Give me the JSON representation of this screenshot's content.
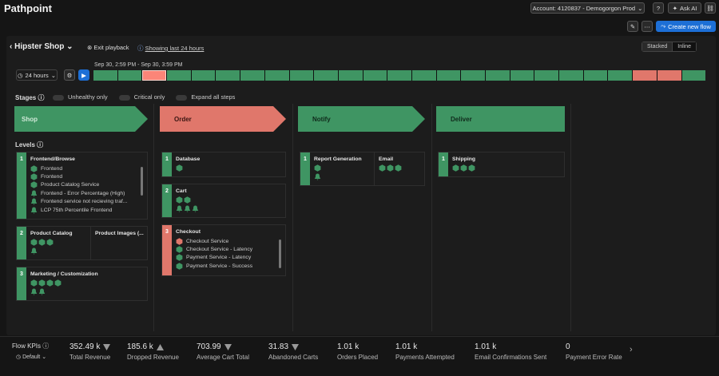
{
  "header": {
    "title": "Pathpoint",
    "account": "Account: 4120837 - Demogorgon Prod",
    "ask_ai": "Ask AI"
  },
  "toolbar": {
    "create_flow": "Create new flow"
  },
  "flow": {
    "name": "Hipster Shop",
    "exit": "Exit playback",
    "showing": "Showing last 24 hours",
    "views": [
      "Stacked",
      "Inline"
    ],
    "active_view": 1
  },
  "timeline": {
    "range": "24 hours",
    "time_label": "Sep 30, 2:59 PM - Sep 30, 3:59 PM",
    "selected": 2,
    "segments": [
      "#3f9563",
      "#3f9563",
      "#e0776b",
      "#3f9563",
      "#3f9563",
      "#3f9563",
      "#3f9563",
      "#3f9563",
      "#3f9563",
      "#3f9563",
      "#3f9563",
      "#3f9563",
      "#3f9563",
      "#3f9563",
      "#3f9563",
      "#3f9563",
      "#3f9563",
      "#3f9563",
      "#3f9563",
      "#3f9563",
      "#3f9563",
      "#3f9563",
      "#e0776b",
      "#e0776b",
      "#3f9563"
    ]
  },
  "stages_bar": {
    "label": "Stages",
    "toggles": [
      "Unhealthy only",
      "Critical only",
      "Expand all steps"
    ],
    "levels_label": "Levels"
  },
  "stages": [
    {
      "name": "Shop",
      "color": "#3f9563",
      "levels": [
        {
          "number": "1",
          "color": "#3f9563",
          "steps": [
            {
              "name": "Frontend/Browse",
              "scroll": true,
              "signals": [
                {
                  "type": "hex",
                  "color": "#3f9563",
                  "name": "Frontend"
                },
                {
                  "type": "hex",
                  "color": "#3f9563",
                  "name": "Frontend"
                },
                {
                  "type": "hex",
                  "color": "#3f9563",
                  "name": "Product Catalog Service"
                },
                {
                  "type": "bell",
                  "color": "#3f9563",
                  "name": "Frontend - Error Percentage (High)"
                },
                {
                  "type": "bell",
                  "color": "#3f9563",
                  "name": "Frontend service not recieving traf..."
                },
                {
                  "type": "bell",
                  "color": "#3f9563",
                  "name": "LCP 75th Percentile Frontend"
                }
              ]
            }
          ]
        },
        {
          "number": "2",
          "color": "#3f9563",
          "steps": [
            {
              "name": "Product Catalog",
              "signals": [
                {
                  "type": "hex",
                  "color": "#3f9563"
                },
                {
                  "type": "hex",
                  "color": "#3f9563"
                },
                {
                  "type": "hex",
                  "color": "#3f9563"
                },
                {
                  "type": "break"
                },
                {
                  "type": "bell",
                  "color": "#3f9563"
                }
              ]
            },
            {
              "name": "Product Images (...",
              "signals": []
            }
          ]
        },
        {
          "number": "3",
          "color": "#3f9563",
          "steps": [
            {
              "name": "Marketing / Customization",
              "signals": [
                {
                  "type": "hex",
                  "color": "#3f9563"
                },
                {
                  "type": "hex",
                  "color": "#3f9563"
                },
                {
                  "type": "hex",
                  "color": "#3f9563"
                },
                {
                  "type": "hex",
                  "color": "#3f9563"
                },
                {
                  "type": "break"
                },
                {
                  "type": "bell",
                  "color": "#3f9563"
                },
                {
                  "type": "bell",
                  "color": "#3f9563"
                }
              ]
            }
          ]
        }
      ]
    },
    {
      "name": "Order",
      "color": "#e0776b",
      "levels": [
        {
          "number": "1",
          "color": "#3f9563",
          "steps": [
            {
              "name": "Database",
              "signals": [
                {
                  "type": "hex",
                  "color": "#3f9563"
                }
              ]
            }
          ]
        },
        {
          "number": "2",
          "color": "#3f9563",
          "steps": [
            {
              "name": "Cart",
              "signals": [
                {
                  "type": "hex",
                  "color": "#3f9563"
                },
                {
                  "type": "hex",
                  "color": "#3f9563"
                },
                {
                  "type": "break"
                },
                {
                  "type": "bell",
                  "color": "#3f9563"
                },
                {
                  "type": "bell",
                  "color": "#3f9563"
                },
                {
                  "type": "bell",
                  "color": "#3f9563"
                }
              ]
            }
          ]
        },
        {
          "number": "3",
          "color": "#e0776b",
          "steps": [
            {
              "name": "Checkout",
              "scroll": true,
              "signals": [
                {
                  "type": "hex",
                  "color": "#e0776b",
                  "name": "Checkout Service"
                },
                {
                  "type": "hex",
                  "color": "#3f9563",
                  "name": "Checkout Service - Latency"
                },
                {
                  "type": "hex",
                  "color": "#3f9563",
                  "name": "Payment Service - Latency"
                },
                {
                  "type": "hex",
                  "color": "#3f9563",
                  "name": "Payment Service - Success"
                }
              ]
            }
          ]
        }
      ]
    },
    {
      "name": "Notify",
      "color": "#3f9563",
      "levels": [
        {
          "number": "1",
          "color": "#3f9563",
          "steps": [
            {
              "name": "Report Generation",
              "signals": [
                {
                  "type": "hex",
                  "color": "#3f9563"
                },
                {
                  "type": "break"
                },
                {
                  "type": "bell",
                  "color": "#3f9563"
                }
              ]
            },
            {
              "name": "Email",
              "signals": [
                {
                  "type": "hex",
                  "color": "#3f9563"
                },
                {
                  "type": "hex",
                  "color": "#3f9563"
                },
                {
                  "type": "hex",
                  "color": "#3f9563"
                }
              ]
            }
          ]
        }
      ]
    },
    {
      "name": "Deliver",
      "color": "#3f9563",
      "levels": [
        {
          "number": "1",
          "color": "#3f9563",
          "steps": [
            {
              "name": "Shipping",
              "signals": [
                {
                  "type": "hex",
                  "color": "#3f9563"
                },
                {
                  "type": "hex",
                  "color": "#3f9563"
                },
                {
                  "type": "hex",
                  "color": "#3f9563"
                }
              ]
            }
          ]
        }
      ]
    }
  ],
  "kpis": {
    "label": "Flow KPIs",
    "preset": "Default",
    "items": [
      {
        "value": "352.49 k",
        "trend": "down",
        "name": "Total Revenue"
      },
      {
        "value": "185.6 k",
        "trend": "up",
        "name": "Dropped Revenue"
      },
      {
        "value": "703.99",
        "trend": "down",
        "name": "Average Cart Total"
      },
      {
        "value": "31.83",
        "trend": "down",
        "name": "Abandoned Carts"
      },
      {
        "value": "1.01 k",
        "name": "Orders Placed"
      },
      {
        "value": "1.01 k",
        "name": "Payments Attempted"
      },
      {
        "value": "1.01 k",
        "name": "Email Confirmations Sent"
      },
      {
        "value": "0",
        "name": "Payment Error Rate"
      }
    ]
  }
}
